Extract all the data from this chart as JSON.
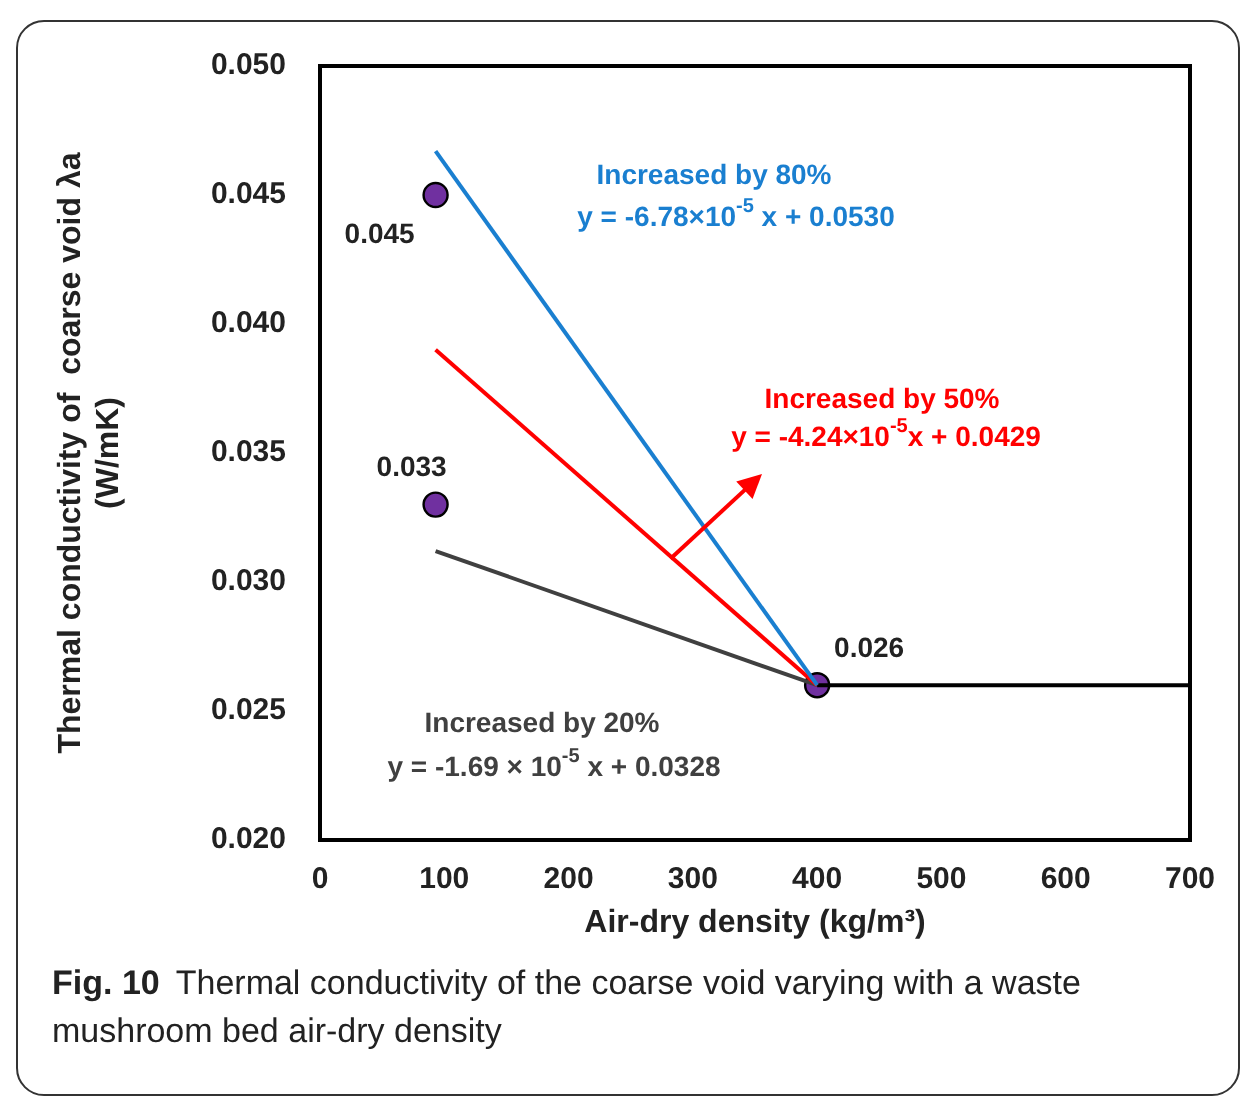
{
  "chart_data": {
    "type": "line",
    "title": "Fig. 10",
    "subtitle": "Thermal conductivity of the coarse void varying with a waste mushroom bed air-dry density",
    "xlabel": "Air-dry density (kg/m³)",
    "ylabel": "Thermal conductivity of  coarse void λa\n(W/mK)",
    "xlim": [
      0,
      700
    ],
    "xticks": [
      0,
      100,
      200,
      300,
      400,
      500,
      600,
      700
    ],
    "ylim": [
      0.02,
      0.05
    ],
    "yticks": [
      {
        "value": 0.02,
        "label": "0.020"
      },
      {
        "value": 0.025,
        "label": "0.025"
      },
      {
        "value": 0.03,
        "label": "0.030"
      },
      {
        "value": 0.035,
        "label": "0.035"
      },
      {
        "value": 0.04,
        "label": "0.040"
      },
      {
        "value": 0.045,
        "label": "0.045"
      },
      {
        "value": 0.05,
        "label": "0.050"
      }
    ],
    "grid": false,
    "legend": false,
    "series": [
      {
        "name": "Increased by 80%",
        "type": "line",
        "color": "#1a7fd0",
        "x": [
          93,
          400
        ],
        "values": [
          0.0467,
          0.026
        ],
        "marker": "none"
      },
      {
        "name": "Increased by 50%",
        "type": "line",
        "color": "#ff0000",
        "x": [
          93,
          400
        ],
        "values": [
          0.039,
          0.026
        ],
        "marker": "none"
      },
      {
        "name": "Increased by 20%",
        "type": "line",
        "color": "#404040",
        "x": [
          93,
          400
        ],
        "values": [
          0.0312,
          0.026
        ],
        "marker": "none"
      },
      {
        "type": "line",
        "color": "#000000",
        "x": [
          400,
          700
        ],
        "values": [
          0.026,
          0.026
        ],
        "marker": "none"
      },
      {
        "type": "scatter",
        "color": "#7030a0",
        "x": [
          93,
          93,
          400
        ],
        "values": [
          0.045,
          0.033,
          0.026
        ],
        "marker": "circle",
        "value_labels": [
          "0.045",
          "0.033",
          "0.026"
        ]
      }
    ],
    "annotations": [
      "y = -6.78×10$^{-5}$ x + 0.0530",
      {
        "text": "y = -4.24×10$^{-5}$x + 0.0429",
        "x": 282,
        "y": 0.0309
      },
      "y = -1.69 × 10$^{-5}$ x + 0.0328"
    ]
  }
}
